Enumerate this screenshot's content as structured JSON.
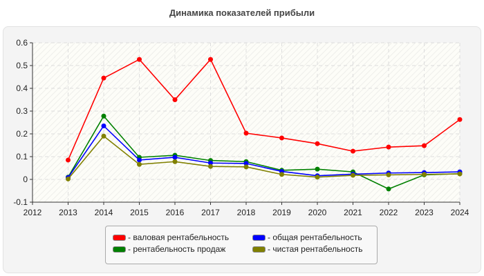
{
  "chart_data": {
    "type": "line",
    "title": "Динамика показателей прибыли",
    "x": [
      2013,
      2014,
      2015,
      2016,
      2017,
      2018,
      2019,
      2020,
      2021,
      2022,
      2023,
      2024
    ],
    "xlim": [
      2012,
      2024
    ],
    "ylim": [
      -0.1,
      0.6
    ],
    "xticks": [
      "2012",
      "2013",
      "2014",
      "2015",
      "2016",
      "2017",
      "2018",
      "2019",
      "2020",
      "2021",
      "2022",
      "2023",
      "2024"
    ],
    "yticks": [
      "-0.1",
      "0",
      "0.1",
      "0.2",
      "0.3",
      "0.4",
      "0.5",
      "0.6"
    ],
    "grid": true,
    "legend_position": "bottom",
    "series": [
      {
        "name": "- валовая рентабельность",
        "color": "#ff0000",
        "values": [
          0.085,
          0.445,
          0.527,
          0.35,
          0.527,
          0.203,
          0.182,
          0.157,
          0.124,
          0.142,
          0.148,
          0.263
        ]
      },
      {
        "name": "- общая рентабельность",
        "color": "#0000ff",
        "values": [
          0.008,
          0.235,
          0.085,
          0.097,
          0.072,
          0.07,
          0.035,
          0.016,
          0.023,
          0.028,
          0.03,
          0.033
        ]
      },
      {
        "name": "- рентабельность продаж",
        "color": "#008000",
        "values": [
          0.01,
          0.278,
          0.097,
          0.106,
          0.083,
          0.078,
          0.04,
          0.045,
          0.033,
          -0.042,
          0.02,
          0.025
        ]
      },
      {
        "name": "- чистая рентабельность",
        "color": "#808000",
        "values": [
          0.002,
          0.19,
          0.066,
          0.078,
          0.057,
          0.055,
          0.022,
          0.01,
          0.018,
          0.02,
          0.022,
          0.024
        ]
      }
    ]
  }
}
